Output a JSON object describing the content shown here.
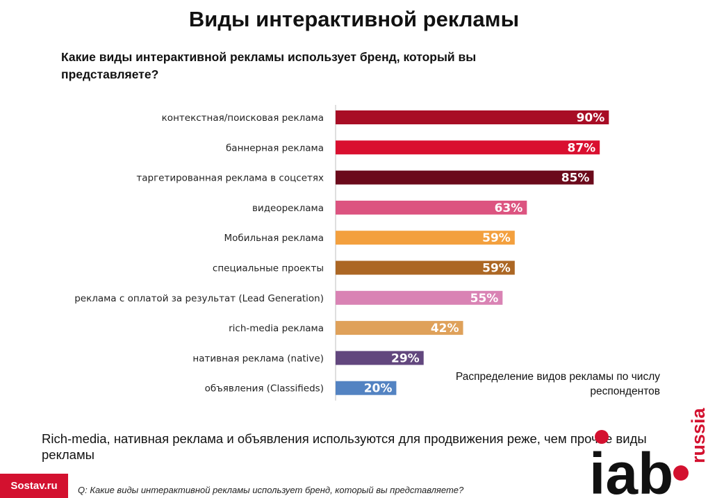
{
  "header": {
    "title": "Виды интерактивной рекламы",
    "question": "Какие виды интерактивной рекламы использует бренд, который вы представляете?"
  },
  "chart_data": {
    "type": "bar",
    "orientation": "horizontal",
    "categories": [
      "контекстная/поисковая реклама",
      "баннерная реклама",
      "таргетированная реклама в соцсетях",
      "видеореклама",
      "Мобильная реклама",
      "специальные проекты",
      "реклама с оплатой за результат (Lead Generation)",
      "rich-media реклама",
      "нативная реклама (native)",
      "объявления (Classifieds)"
    ],
    "values": [
      90,
      87,
      85,
      63,
      59,
      59,
      55,
      42,
      29,
      20
    ],
    "value_labels": [
      "90%",
      "87%",
      "85%",
      "63%",
      "59%",
      "59%",
      "55%",
      "42%",
      "29%",
      "20%"
    ],
    "colors": [
      "#a80d25",
      "#d90f2f",
      "#6b0a1b",
      "#dc5480",
      "#f3a03e",
      "#ac6724",
      "#d983b4",
      "#dfa15a",
      "#62477e",
      "#5383c2"
    ],
    "xlim": [
      0,
      100
    ],
    "grid": false,
    "legend": "none"
  },
  "note": "Распределение видов рекламы по числу респондентов",
  "conclusion": "Rich-media, нативная реклама и объявления используются для продвижения реже, чем прочие виды рекламы",
  "footer": {
    "source": "Sostav.ru",
    "footnote": "Q: Какие виды интерактивной рекламы использует бренд, который вы представляете?",
    "logo_main": "iab",
    "logo_sub": "russia"
  },
  "colors": {
    "brand_red": "#d3112f",
    "logo_black": "#111111"
  }
}
